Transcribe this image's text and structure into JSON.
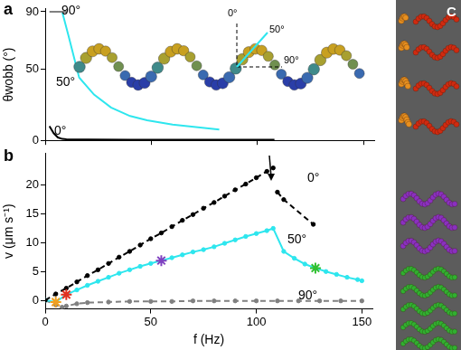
{
  "chart_data": [
    {
      "type": "line",
      "title": "a",
      "y_label": "θwobb (°)",
      "xlim": [
        0,
        155
      ],
      "xticks": [
        0,
        50,
        100,
        150
      ],
      "ylim": [
        0,
        92
      ],
      "yticks": [
        0,
        50,
        90
      ],
      "grid": false,
      "tick_labels": "y",
      "inset_labels": [
        "0°",
        "50°",
        "90°"
      ],
      "series": [
        {
          "name": "90°",
          "color": "#808080",
          "marker": "none",
          "line_style": "solid",
          "x": [
            2,
            10
          ],
          "values": [
            90,
            90
          ]
        },
        {
          "name": "50°",
          "color": "#2ee6ee",
          "marker": "none",
          "line_style": "solid",
          "x": [
            8,
            11,
            16,
            23,
            31,
            40,
            48,
            60,
            70,
            82
          ],
          "values": [
            90,
            73,
            44,
            32,
            23,
            17,
            14,
            11,
            9.5,
            7.6
          ]
        },
        {
          "name": "0°",
          "color": "#000000",
          "marker": "none",
          "line_style": "solid",
          "x": [
            2,
            4,
            6,
            8,
            10,
            20,
            40,
            60,
            80,
            108
          ],
          "values": [
            10,
            5,
            2,
            1,
            0.8,
            0.6,
            0.5,
            0.5,
            0.5,
            0.5
          ]
        }
      ]
    },
    {
      "type": "line",
      "title": "b",
      "x_label": "f (Hz)",
      "y_label": "v (μm s⁻¹)",
      "xlim": [
        0,
        155
      ],
      "xticks": [
        0,
        50,
        100,
        150
      ],
      "ylim": [
        -1.5,
        25.5
      ],
      "yticks": [
        0,
        5,
        10,
        15,
        20
      ],
      "grid": false,
      "series": [
        {
          "name": "0°",
          "color": "#000000",
          "marker": "circle",
          "line_style": "dashed",
          "x": [
            0,
            5,
            10,
            15,
            20,
            25,
            30,
            35,
            40,
            45,
            50,
            55,
            60,
            65,
            70,
            75,
            80,
            85,
            90,
            95,
            100,
            105,
            108,
            109,
            110,
            113,
            127
          ],
          "values": [
            0,
            1.1,
            2.1,
            3.2,
            4.3,
            5.3,
            6.4,
            7.5,
            8.5,
            9.6,
            10.7,
            11.7,
            12.8,
            13.9,
            14.9,
            16.0,
            17.0,
            18.1,
            19.2,
            20.2,
            21.3,
            22.4,
            23.0,
            null,
            18.8,
            17.5,
            13.2
          ]
        },
        {
          "name": "50°",
          "color": "#2ee6ee",
          "marker": "circle",
          "line_style": "solid",
          "x": [
            0,
            5,
            10,
            15,
            20,
            25,
            30,
            35,
            40,
            45,
            50,
            55,
            60,
            65,
            70,
            75,
            80,
            85,
            90,
            95,
            100,
            105,
            108,
            113,
            118,
            123,
            128,
            133,
            138,
            143,
            148,
            150
          ],
          "values": [
            0,
            -0.3,
            1.0,
            1.8,
            2.6,
            3.3,
            4.0,
            4.7,
            5.3,
            5.9,
            6.4,
            6.9,
            7.4,
            7.9,
            8.4,
            8.8,
            9.3,
            9.9,
            10.5,
            11.1,
            11.6,
            12.1,
            12.5,
            8.5,
            7.3,
            6.3,
            5.6,
            5.0,
            4.5,
            4.0,
            3.6,
            3.4
          ]
        },
        {
          "name": "90°",
          "color": "#808080",
          "marker": "circle",
          "line_style": "dashed",
          "x": [
            0,
            5,
            8,
            10,
            15,
            20,
            30,
            40,
            50,
            60,
            70,
            80,
            90,
            100,
            110,
            120,
            130,
            140,
            150
          ],
          "values": [
            0,
            -0.8,
            -1.2,
            -1.0,
            -0.6,
            -0.4,
            -0.3,
            -0.2,
            -0.2,
            -0.2,
            -0.1,
            -0.1,
            -0.1,
            -0.1,
            -0.1,
            -0.1,
            -0.1,
            -0.1,
            -0.1
          ]
        },
        {
          "color": "#f0a020",
          "marker": "star",
          "line_style": "none",
          "x": [
            5
          ],
          "values": [
            -0.3
          ]
        },
        {
          "color": "#e03020",
          "marker": "star",
          "line_style": "none",
          "x": [
            10
          ],
          "values": [
            1.0
          ]
        },
        {
          "color": "#8040c0",
          "marker": "star",
          "line_style": "none",
          "x": [
            55
          ],
          "values": [
            6.9
          ]
        },
        {
          "color": "#30c030",
          "marker": "star",
          "line_style": "none",
          "x": [
            128
          ],
          "values": [
            5.6
          ]
        }
      ]
    }
  ],
  "panel_c": {
    "title": "C"
  }
}
